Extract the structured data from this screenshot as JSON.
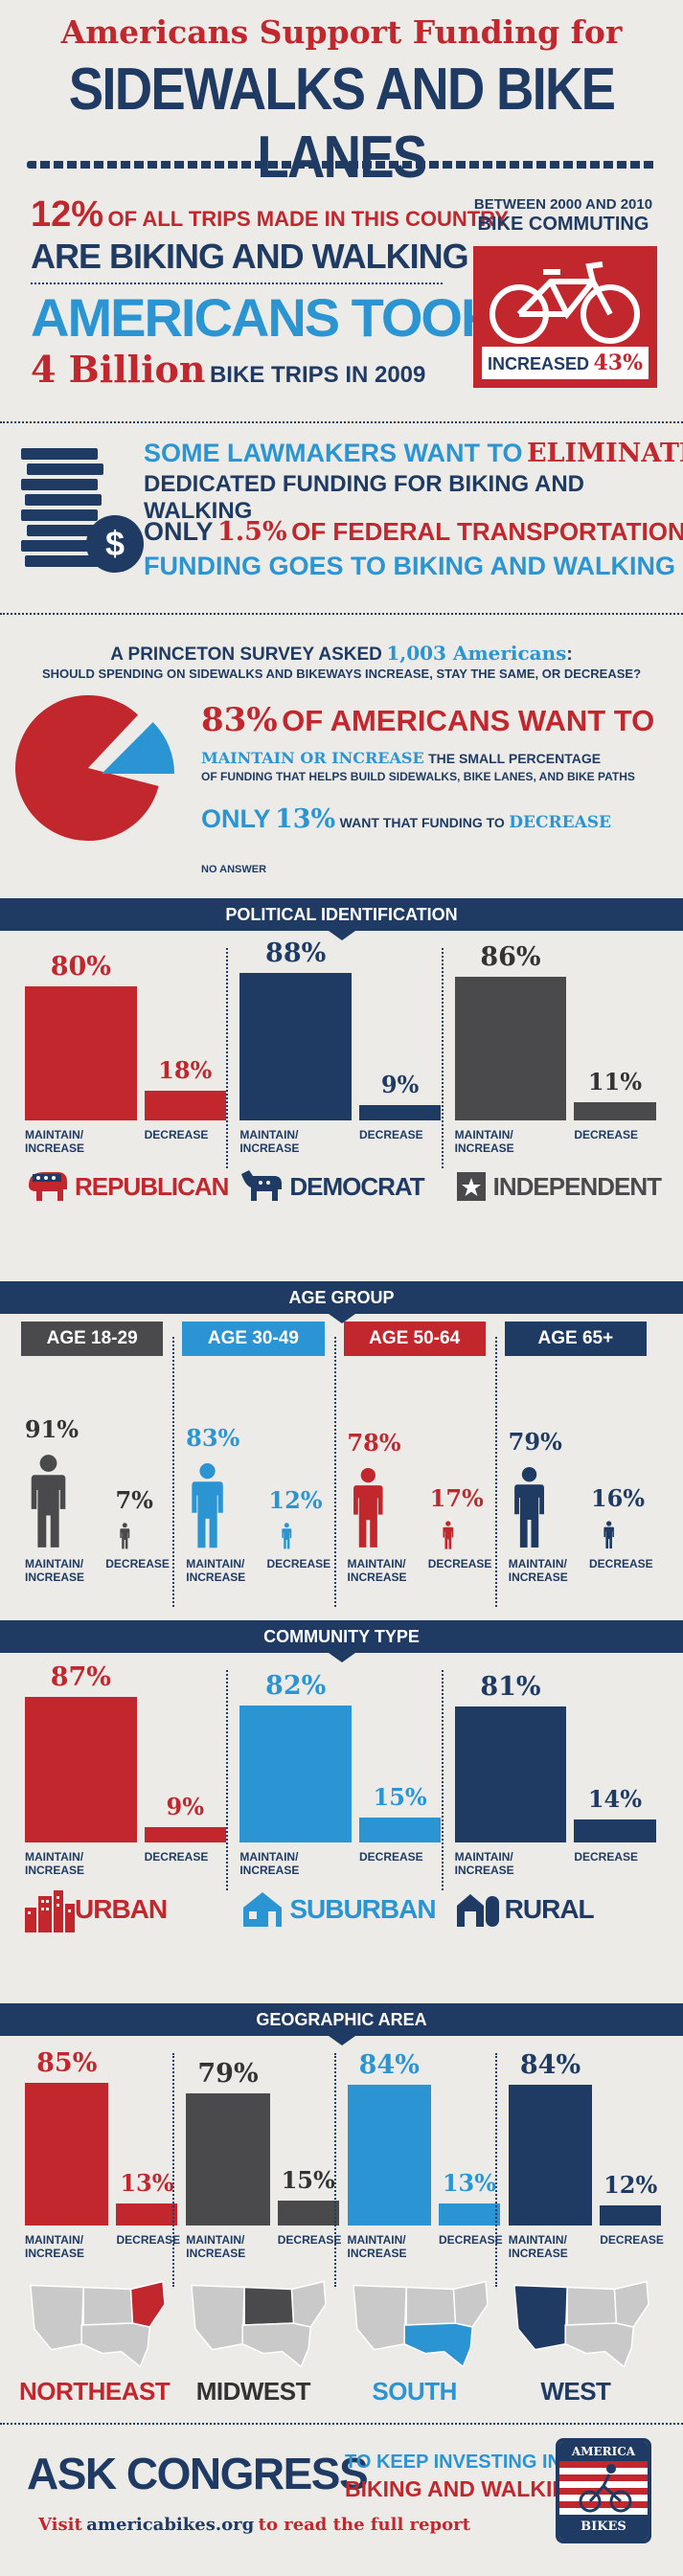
{
  "header": {
    "title_line1": "Americans Support Funding for",
    "title_line2": "SIDEWALKS AND BIKE LANES"
  },
  "stats": {
    "trips_pct": "12%",
    "trips_text1": "OF ALL TRIPS MADE IN THIS COUNTRY",
    "trips_text2": "ARE BIKING AND WALKING",
    "took_line": "AMERICANS TOOK",
    "billion": "4 Billion",
    "billion_text": "BIKE TRIPS IN 2009",
    "commute_line1": "BETWEEN 2000 AND 2010",
    "commute_line2": "BIKE COMMUTING",
    "increased_label": "INCREASED",
    "increased_value": "43%"
  },
  "funding": {
    "line1_a": "SOME LAWMAKERS WANT TO",
    "line1_b": "ELIMINATE",
    "line2": "DEDICATED FUNDING FOR BIKING AND WALKING",
    "line3_a": "ONLY",
    "line3_b": "1.5%",
    "line3_c": "OF FEDERAL TRANSPORTATION",
    "line4": "FUNDING GOES TO BIKING AND WALKING"
  },
  "survey": {
    "intro_a": "A PRINCETON SURVEY ASKED",
    "intro_b": "1,003 Americans",
    "intro_c": ":",
    "question": "SHOULD SPENDING ON SIDEWALKS AND BIKEWAYS INCREASE, STAY THE SAME, OR DECREASE?",
    "big_pct": "83%",
    "big_text": "OF AMERICANS WANT TO",
    "maintain": "MAINTAIN OR INCREASE",
    "small1": "THE SMALL PERCENTAGE",
    "small2": "OF FUNDING THAT HELPS BUILD SIDEWALKS, BIKE LANES, AND BIKE PATHS",
    "only": "ONLY",
    "decrease_pct": "13%",
    "decrease_text_a": "WANT THAT FUNDING TO",
    "decrease_text_b": "DECREASE",
    "no_answer": "NO ANSWER"
  },
  "common": {
    "maintain_l1": "MAINTAIN/",
    "maintain_l2": "INCREASE",
    "decrease": "DECREASE"
  },
  "sections": {
    "political": "POLITICAL IDENTIFICATION",
    "age": "AGE GROUP",
    "community": "COMMUNITY TYPE",
    "geographic": "GEOGRAPHIC AREA"
  },
  "party_names": [
    "REPUBLICAN",
    "DEMOCRAT",
    "INDEPENDENT"
  ],
  "age_names": [
    "AGE 18-29",
    "AGE 30-49",
    "AGE 50-64",
    "AGE 65+"
  ],
  "community_names": [
    "URBAN",
    "SUBURBAN",
    "RURAL"
  ],
  "region_names": [
    "NORTHEAST",
    "MIDWEST",
    "SOUTH",
    "WEST"
  ],
  "footer": {
    "ask": "ASK CONGRESS",
    "keep": "TO KEEP INVESTING IN",
    "biking": "BIKING AND WALKING",
    "visit_a": "Visit",
    "visit_b": "americabikes.org",
    "visit_c": "to read the full report",
    "logo_top": "AMERICA",
    "logo_bottom": "BIKES"
  },
  "colors": {
    "red": "#c1272d",
    "navy": "#1f3b63",
    "blue": "#2b95d3",
    "gray": "#4a4a4c"
  },
  "chart_data": [
    {
      "type": "pie",
      "categories": [
        "Maintain or Increase",
        "Decrease",
        "No Answer"
      ],
      "values": [
        83,
        13,
        4
      ]
    },
    {
      "type": "bar",
      "title": "POLITICAL IDENTIFICATION",
      "categories": [
        "REPUBLICAN",
        "DEMOCRAT",
        "INDEPENDENT"
      ],
      "series": [
        {
          "name": "MAINTAIN/ INCREASE",
          "values": [
            80,
            88,
            86
          ]
        },
        {
          "name": "DECREASE",
          "values": [
            18,
            9,
            11
          ]
        }
      ],
      "ylim": [
        0,
        100
      ]
    },
    {
      "type": "bar",
      "title": "AGE GROUP",
      "categories": [
        "AGE 18-29",
        "AGE 30-49",
        "AGE 50-64",
        "AGE 65+"
      ],
      "series": [
        {
          "name": "MAINTAIN/ INCREASE",
          "values": [
            91,
            83,
            78,
            79
          ]
        },
        {
          "name": "DECREASE",
          "values": [
            7,
            12,
            17,
            16
          ]
        }
      ],
      "ylim": [
        0,
        100
      ]
    },
    {
      "type": "bar",
      "title": "COMMUNITY TYPE",
      "categories": [
        "URBAN",
        "SUBURBAN",
        "RURAL"
      ],
      "series": [
        {
          "name": "MAINTAIN/ INCREASE",
          "values": [
            87,
            82,
            81
          ]
        },
        {
          "name": "DECREASE",
          "values": [
            9,
            15,
            14
          ]
        }
      ],
      "ylim": [
        0,
        100
      ]
    },
    {
      "type": "bar",
      "title": "GEOGRAPHIC AREA",
      "categories": [
        "NORTHEAST",
        "MIDWEST",
        "SOUTH",
        "WEST"
      ],
      "series": [
        {
          "name": "MAINTAIN/ INCREASE",
          "values": [
            85,
            79,
            84,
            84
          ]
        },
        {
          "name": "DECREASE",
          "values": [
            13,
            15,
            13,
            12
          ]
        }
      ],
      "ylim": [
        0,
        100
      ]
    }
  ]
}
